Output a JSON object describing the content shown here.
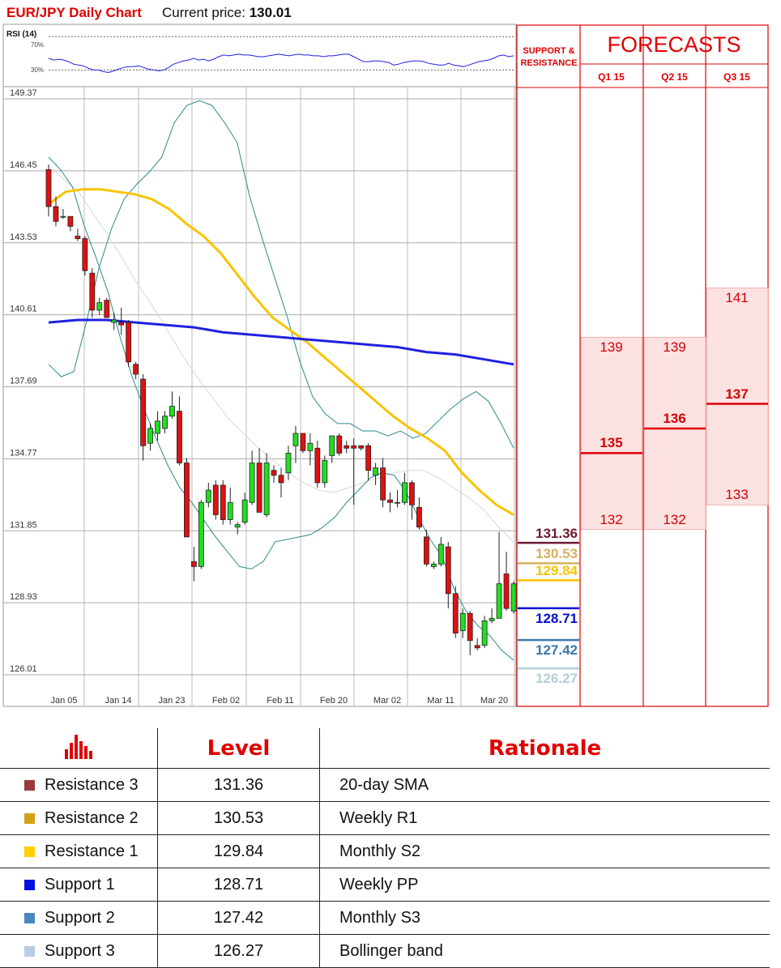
{
  "header": {
    "title": "EUR/JPY Daily Chart",
    "price_label": "Current price:",
    "price_value": "130.01"
  },
  "rsi": {
    "label": "RSI (14)",
    "upper_label": "70%",
    "lower_label": "30%"
  },
  "colors": {
    "accent": "#e00000",
    "up_candle": "#22dd22",
    "down_candle": "#e01010",
    "sma_yellow": "#f8c400",
    "sma_blue": "#2020e0",
    "bollinger": "#2a8a8a",
    "resistance_3": "#6b1a2e",
    "resistance_2": "#d8b060",
    "resistance_1": "#f8c400",
    "support_1": "#0010d0",
    "support_2": "#3a78a8",
    "support_3": "#b0d0d8"
  },
  "chart_data": {
    "type": "candlestick",
    "y_ticks": [
      "149.37",
      "146.45",
      "143.53",
      "140.61",
      "137.69",
      "134.77",
      "131.85",
      "128.93",
      "126.01"
    ],
    "ylim": [
      126.01,
      149.37
    ],
    "x_ticks": [
      "Jan 05",
      "Jan 14",
      "Jan 23",
      "Feb 02",
      "Feb 11",
      "Feb 20",
      "Mar 02",
      "Mar 11",
      "Mar 20"
    ],
    "candles": [
      {
        "o": 146.5,
        "h": 146.7,
        "l": 144.6,
        "c": 145.0
      },
      {
        "o": 145.0,
        "h": 145.4,
        "l": 144.2,
        "c": 144.4
      },
      {
        "o": 144.6,
        "h": 144.9,
        "l": 144.5,
        "c": 144.6
      },
      {
        "o": 144.6,
        "h": 144.6,
        "l": 144.0,
        "c": 144.2
      },
      {
        "o": 143.8,
        "h": 144.1,
        "l": 143.6,
        "c": 143.7
      },
      {
        "o": 143.7,
        "h": 143.8,
        "l": 142.2,
        "c": 142.4
      },
      {
        "o": 142.3,
        "h": 142.5,
        "l": 140.5,
        "c": 140.8
      },
      {
        "o": 140.8,
        "h": 141.3,
        "l": 140.6,
        "c": 141.1
      },
      {
        "o": 141.2,
        "h": 141.3,
        "l": 140.5,
        "c": 140.5
      },
      {
        "o": 140.3,
        "h": 140.7,
        "l": 140.0,
        "c": 140.4
      },
      {
        "o": 140.3,
        "h": 140.9,
        "l": 139.8,
        "c": 140.2
      },
      {
        "o": 140.3,
        "h": 140.4,
        "l": 138.5,
        "c": 138.7
      },
      {
        "o": 138.6,
        "h": 138.7,
        "l": 138.0,
        "c": 138.2
      },
      {
        "o": 138.0,
        "h": 138.2,
        "l": 134.7,
        "c": 135.3
      },
      {
        "o": 135.4,
        "h": 136.2,
        "l": 135.1,
        "c": 136.0
      },
      {
        "o": 135.8,
        "h": 136.7,
        "l": 135.5,
        "c": 136.3
      },
      {
        "o": 136.0,
        "h": 136.7,
        "l": 135.8,
        "c": 136.5
      },
      {
        "o": 136.5,
        "h": 137.5,
        "l": 136.4,
        "c": 136.9
      },
      {
        "o": 136.7,
        "h": 137.3,
        "l": 134.5,
        "c": 134.6
      },
      {
        "o": 134.6,
        "h": 134.8,
        "l": 131.6,
        "c": 131.6
      },
      {
        "o": 130.6,
        "h": 131.2,
        "l": 129.8,
        "c": 130.4
      },
      {
        "o": 130.4,
        "h": 133.1,
        "l": 130.3,
        "c": 133.0
      },
      {
        "o": 133.0,
        "h": 133.8,
        "l": 132.8,
        "c": 133.5
      },
      {
        "o": 133.7,
        "h": 133.9,
        "l": 132.3,
        "c": 132.5
      },
      {
        "o": 133.7,
        "h": 133.9,
        "l": 132.1,
        "c": 132.3
      },
      {
        "o": 132.3,
        "h": 133.6,
        "l": 132.1,
        "c": 133.0
      },
      {
        "o": 132.0,
        "h": 132.2,
        "l": 131.7,
        "c": 132.1
      },
      {
        "o": 132.2,
        "h": 133.4,
        "l": 132.1,
        "c": 133.1
      },
      {
        "o": 133.0,
        "h": 135.1,
        "l": 132.9,
        "c": 134.6
      },
      {
        "o": 134.6,
        "h": 135.2,
        "l": 132.6,
        "c": 132.6
      },
      {
        "o": 132.5,
        "h": 135.0,
        "l": 132.4,
        "c": 134.6
      },
      {
        "o": 134.3,
        "h": 134.5,
        "l": 133.8,
        "c": 134.1
      },
      {
        "o": 134.1,
        "h": 134.4,
        "l": 133.2,
        "c": 133.8
      },
      {
        "o": 134.2,
        "h": 135.3,
        "l": 133.9,
        "c": 135.0
      },
      {
        "o": 135.3,
        "h": 136.1,
        "l": 134.6,
        "c": 135.8
      },
      {
        "o": 135.8,
        "h": 135.8,
        "l": 135.0,
        "c": 135.1
      },
      {
        "o": 135.1,
        "h": 135.8,
        "l": 134.5,
        "c": 135.4
      },
      {
        "o": 135.2,
        "h": 135.5,
        "l": 133.6,
        "c": 133.8
      },
      {
        "o": 133.8,
        "h": 134.9,
        "l": 133.6,
        "c": 134.7
      },
      {
        "o": 134.9,
        "h": 135.7,
        "l": 134.6,
        "c": 135.7
      },
      {
        "o": 135.7,
        "h": 135.8,
        "l": 134.9,
        "c": 135.0
      },
      {
        "o": 135.3,
        "h": 135.5,
        "l": 135.0,
        "c": 135.2
      },
      {
        "o": 135.3,
        "h": 135.6,
        "l": 132.9,
        "c": 135.2
      },
      {
        "o": 135.3,
        "h": 135.3,
        "l": 135.1,
        "c": 135.2
      },
      {
        "o": 135.3,
        "h": 135.4,
        "l": 133.9,
        "c": 134.3
      },
      {
        "o": 134.1,
        "h": 134.6,
        "l": 133.7,
        "c": 134.4
      },
      {
        "o": 134.4,
        "h": 134.8,
        "l": 132.8,
        "c": 133.1
      },
      {
        "o": 133.1,
        "h": 133.4,
        "l": 132.6,
        "c": 133.0
      },
      {
        "o": 133.0,
        "h": 133.5,
        "l": 132.8,
        "c": 133.0
      },
      {
        "o": 133.0,
        "h": 134.2,
        "l": 132.9,
        "c": 133.8
      },
      {
        "o": 133.8,
        "h": 133.9,
        "l": 132.3,
        "c": 132.9
      },
      {
        "o": 132.8,
        "h": 133.2,
        "l": 131.9,
        "c": 132.0
      },
      {
        "o": 131.6,
        "h": 131.9,
        "l": 130.4,
        "c": 130.5
      },
      {
        "o": 130.4,
        "h": 130.6,
        "l": 130.3,
        "c": 130.5
      },
      {
        "o": 130.5,
        "h": 131.6,
        "l": 130.4,
        "c": 131.3
      },
      {
        "o": 131.2,
        "h": 131.4,
        "l": 128.7,
        "c": 129.3
      },
      {
        "o": 129.3,
        "h": 129.6,
        "l": 127.5,
        "c": 127.7
      },
      {
        "o": 127.8,
        "h": 128.7,
        "l": 127.5,
        "c": 128.5
      },
      {
        "o": 128.5,
        "h": 128.6,
        "l": 126.8,
        "c": 127.4
      },
      {
        "o": 127.2,
        "h": 127.5,
        "l": 127.0,
        "c": 127.1
      },
      {
        "o": 127.2,
        "h": 128.4,
        "l": 127.1,
        "c": 128.2
      },
      {
        "o": 128.2,
        "h": 128.7,
        "l": 128.1,
        "c": 128.3
      },
      {
        "o": 128.3,
        "h": 131.8,
        "l": 128.3,
        "c": 129.7
      },
      {
        "o": 130.1,
        "h": 131.0,
        "l": 128.6,
        "c": 128.7
      },
      {
        "o": 128.6,
        "h": 129.8,
        "l": 128.5,
        "c": 129.7
      }
    ],
    "sma_yellow": [
      145.1,
      145.6,
      145.7,
      145.7,
      145.6,
      145.5,
      145.3,
      144.9,
      144.3,
      143.8,
      143.1,
      142.2,
      141.3,
      140.5,
      140.0,
      139.5,
      138.9,
      138.3,
      137.7,
      137.1,
      136.5,
      136.0,
      135.6,
      135.1,
      134.2,
      133.5,
      132.9,
      132.5
    ],
    "sma_blue": [
      140.3,
      140.4,
      140.4,
      140.3,
      140.2,
      140.1,
      139.9,
      139.8,
      139.7,
      139.6,
      139.5,
      139.4,
      139.3,
      139.1,
      139.0,
      138.8,
      138.6
    ],
    "boll_upper": [
      138.6,
      138.1,
      138.3,
      140.3,
      142.5,
      144.1,
      145.3,
      145.9,
      146.4,
      147.0,
      148.4,
      149.1,
      149.3,
      149.1,
      148.4,
      147.6,
      145.4,
      143.7,
      142.1,
      140.5,
      138.7,
      137.3,
      136.6,
      136.2,
      136.2,
      135.9,
      135.9,
      135.7,
      135.9,
      135.6,
      135.8,
      136.3,
      136.8,
      137.2,
      137.5,
      137.1,
      136.2,
      135.2
    ],
    "boll_lower": [
      147.0,
      146.5,
      145.8,
      144.2,
      142.9,
      141.5,
      139.7,
      138.1,
      136.8,
      135.6,
      134.5,
      133.6,
      133.0,
      132.3,
      131.6,
      131.0,
      130.4,
      130.3,
      130.6,
      131.4,
      131.5,
      131.6,
      131.7,
      132.0,
      132.4,
      133.0,
      133.5,
      134.0,
      134.2,
      134.1,
      133.4,
      132.4,
      131.5,
      130.8,
      129.5,
      128.6,
      128.0,
      127.6,
      127.0,
      126.6
    ],
    "boll_mid": [
      146.7,
      146.1,
      145.6,
      144.7,
      143.8,
      142.8,
      141.8,
      140.9,
      139.9,
      138.9,
      138.0,
      137.2,
      136.4,
      135.8,
      135.2,
      134.7,
      134.2,
      133.8,
      133.5,
      133.4,
      133.6,
      133.8,
      134.0,
      134.2,
      134.3,
      134.3,
      134.0,
      133.6,
      133.2,
      132.7,
      132.0,
      131.4
    ],
    "rsi_values": [
      44,
      42,
      43,
      42,
      40,
      37,
      36,
      35,
      32,
      30,
      30,
      28,
      27,
      29,
      31,
      33,
      34,
      34,
      35,
      33,
      31,
      30,
      29,
      30,
      33,
      37,
      39,
      41,
      42,
      44,
      42,
      43,
      41,
      43,
      46,
      48,
      47,
      48,
      49,
      48,
      48,
      47,
      46,
      46,
      47,
      48,
      49,
      48,
      47,
      48,
      49,
      48,
      48,
      47,
      47,
      46,
      47,
      47,
      48,
      49,
      49,
      46,
      43,
      40,
      40,
      41,
      41,
      40,
      39,
      36,
      37,
      39,
      40,
      41,
      41,
      40,
      38,
      37,
      36,
      36,
      38,
      36,
      35,
      34,
      36,
      38,
      40,
      41,
      42,
      44,
      47,
      48,
      46,
      47
    ]
  },
  "sr_panel": {
    "header_line1": "SUPPORT &",
    "header_line2": "RESISTANCE",
    "levels": [
      {
        "key": "resistance_3",
        "value": "131.36",
        "num": 131.36,
        "color": "#6b1a2e"
      },
      {
        "key": "resistance_2",
        "value": "130.53",
        "num": 130.53,
        "color": "#d8b060"
      },
      {
        "key": "resistance_1",
        "value": "129.84",
        "num": 129.84,
        "color": "#f8c400"
      },
      {
        "key": "support_1",
        "value": "128.71",
        "num": 128.71,
        "color": "#0010d0"
      },
      {
        "key": "support_2",
        "value": "127.42",
        "num": 127.42,
        "color": "#3a78a8"
      },
      {
        "key": "support_3",
        "value": "126.27",
        "num": 126.27,
        "color": "#b0d0d8"
      }
    ]
  },
  "forecasts": {
    "title": "FORECASTS",
    "quarters": [
      {
        "label": "Q1 15",
        "high": "139",
        "mid": "135",
        "low": "132",
        "high_num": 139,
        "mid_num": 135,
        "low_num": 132
      },
      {
        "label": "Q2 15",
        "high": "139",
        "mid": "136",
        "low": "132",
        "high_num": 139,
        "mid_num": 136,
        "low_num": 132
      },
      {
        "label": "Q3 15",
        "high": "141",
        "mid": "137",
        "low": "133",
        "high_num": 141,
        "mid_num": 137,
        "low_num": 133
      }
    ]
  },
  "legend": {
    "level_header": "Level",
    "rationale_header": "Rationale",
    "rows": [
      {
        "name": "Resistance 3",
        "level": "131.36",
        "rationale": "20-day SMA",
        "color": "#9a3a3a"
      },
      {
        "name": "Resistance 2",
        "level": "130.53",
        "rationale": "Weekly R1",
        "color": "#d4a017"
      },
      {
        "name": "Resistance 1",
        "level": "129.84",
        "rationale": "Monthly S2",
        "color": "#ffd000"
      },
      {
        "name": "Support 1",
        "level": "128.71",
        "rationale": "Weekly PP",
        "color": "#0010e0"
      },
      {
        "name": "Support 2",
        "level": "127.42",
        "rationale": "Monthly S3",
        "color": "#4a86c0"
      },
      {
        "name": "Support 3",
        "level": "126.27",
        "rationale": "Bollinger band",
        "color": "#b8cce4"
      }
    ]
  }
}
